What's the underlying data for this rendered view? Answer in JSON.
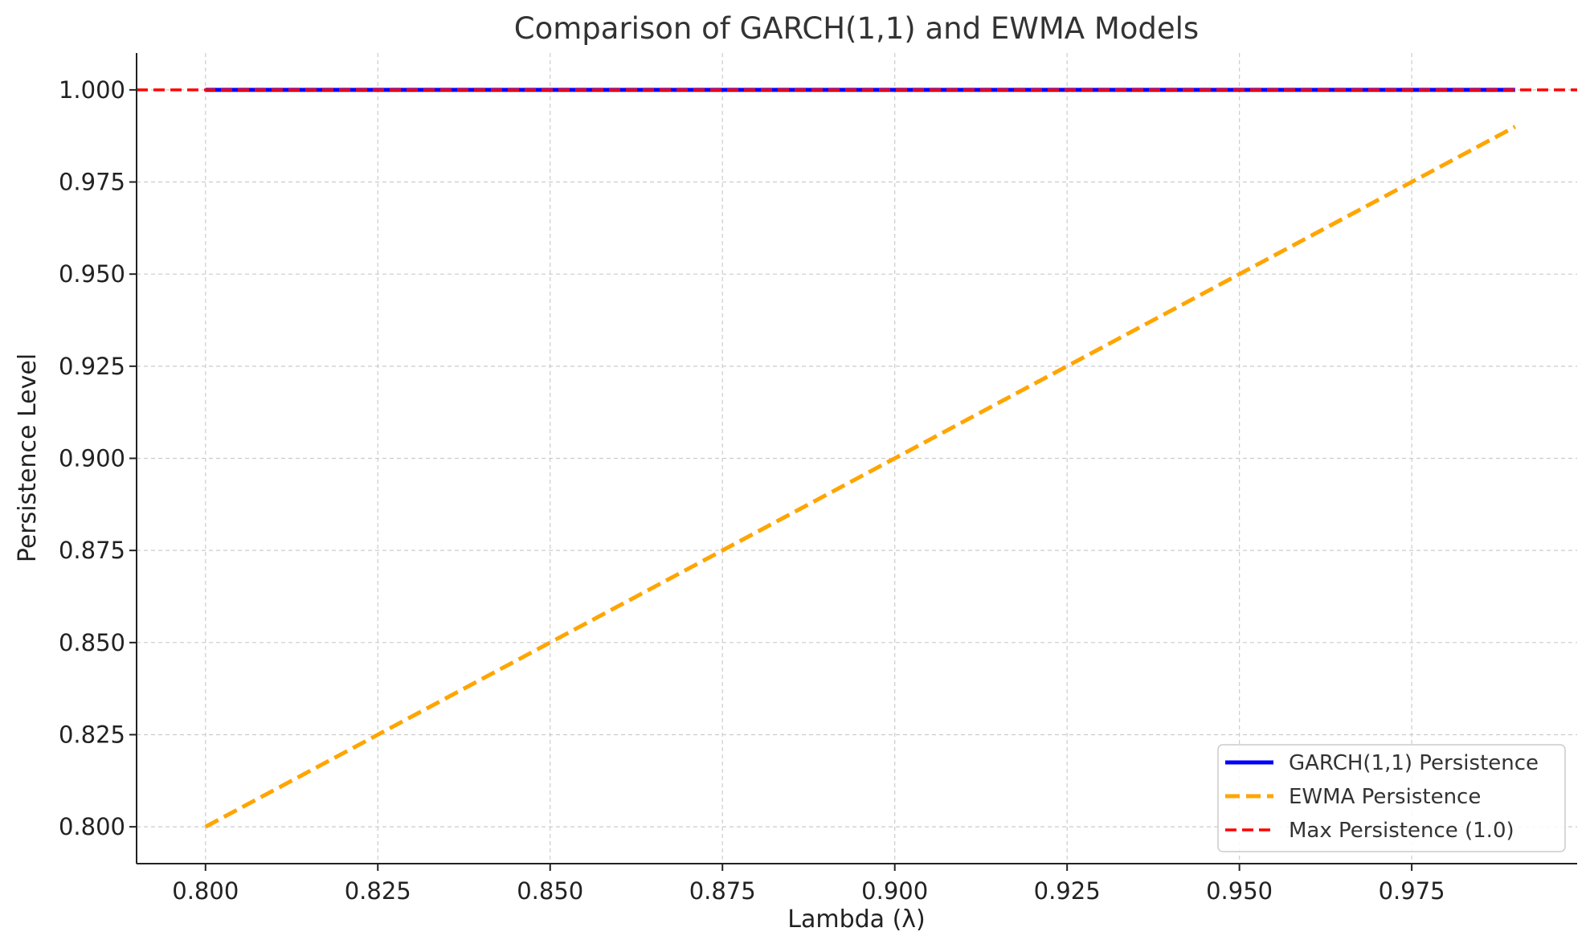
{
  "chart_data": {
    "type": "line",
    "title": "Comparison of GARCH(1,1) and EWMA Models",
    "xlabel": "Lambda (λ)",
    "ylabel": "Persistence Level",
    "xlim": [
      0.79,
      0.999
    ],
    "ylim": [
      0.79,
      1.01
    ],
    "x_ticks": [
      "0.800",
      "0.825",
      "0.850",
      "0.875",
      "0.900",
      "0.925",
      "0.950",
      "0.975"
    ],
    "y_ticks": [
      "0.800",
      "0.825",
      "0.850",
      "0.875",
      "0.900",
      "0.925",
      "0.950",
      "0.975",
      "1.000"
    ],
    "grid": true,
    "legend_position": "bottom-right",
    "series": [
      {
        "name": "GARCH(1,1) Persistence",
        "color": "#0000ff",
        "style": "solid",
        "x": [
          0.8,
          0.99
        ],
        "values": [
          1.0,
          1.0
        ]
      },
      {
        "name": "EWMA Persistence",
        "color": "#ffa500",
        "style": "dashed",
        "x": [
          0.8,
          0.99
        ],
        "values": [
          0.8,
          0.99
        ]
      }
    ],
    "reference_lines": [
      {
        "name": "Max Persistence (1.0)",
        "color": "#ff0000",
        "style": "dashed",
        "orientation": "horizontal",
        "value": 1.0
      }
    ]
  }
}
